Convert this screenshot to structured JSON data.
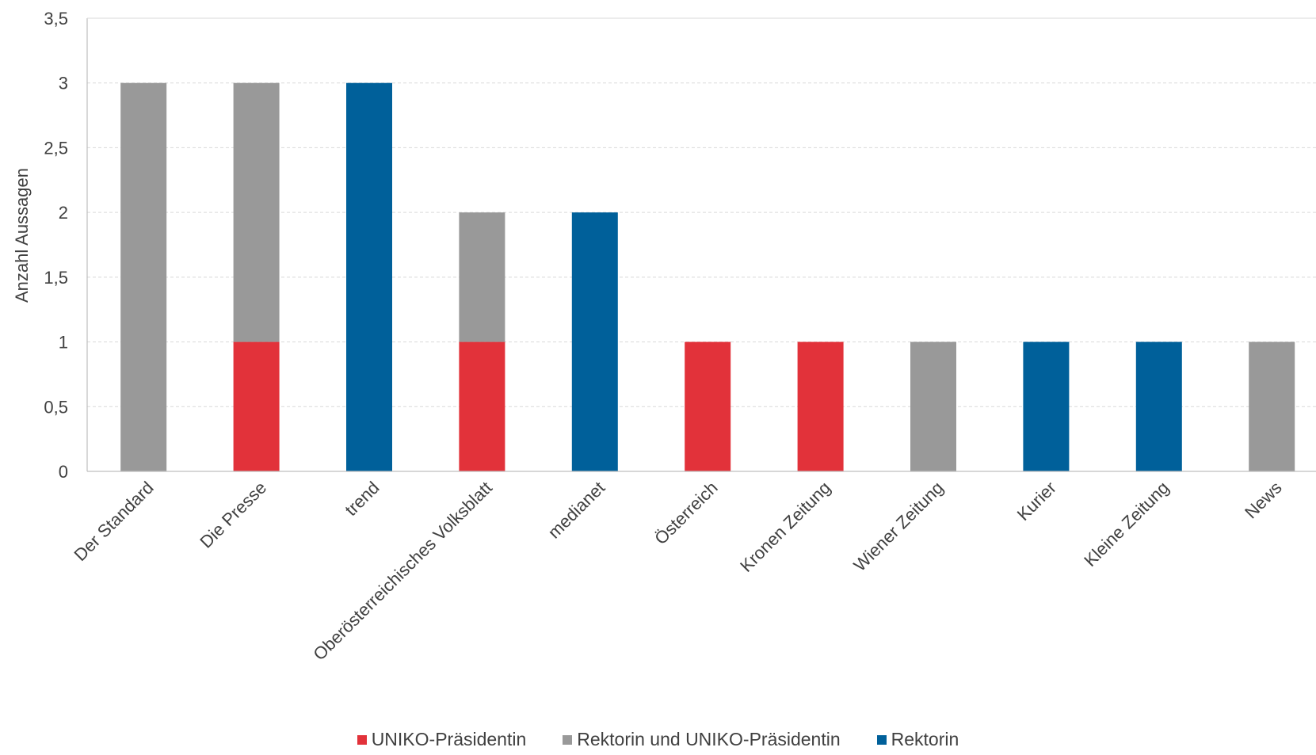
{
  "chart_data": {
    "type": "bar",
    "stacked": true,
    "categories": [
      "Der Standard",
      "Die Presse",
      "trend",
      "Oberösterreichisches Volksblatt",
      "medianet",
      "Österreich",
      "Kronen Zeitung",
      "Wiener Zeitung",
      "Kurier",
      "Kleine Zeitung",
      "News"
    ],
    "series": [
      {
        "name": "UNIKO-Präsidentin",
        "color": "#e2323a",
        "values": [
          0,
          1,
          0,
          1,
          0,
          1,
          1,
          0,
          0,
          0,
          0
        ]
      },
      {
        "name": "Rektorin und UNIKO-Präsidentin",
        "color": "#999999",
        "values": [
          3,
          2,
          0,
          1,
          0,
          0,
          0,
          1,
          0,
          0,
          1
        ]
      },
      {
        "name": "Rektorin",
        "color": "#00609a",
        "values": [
          0,
          0,
          3,
          0,
          2,
          0,
          0,
          0,
          1,
          1,
          0
        ]
      }
    ],
    "ylabel": "Anzahl Aussagen",
    "ylim": [
      0,
      3.5
    ],
    "yticks": [
      "0",
      "0,5",
      "1",
      "1,5",
      "2",
      "2,5",
      "3",
      "3,5"
    ],
    "grid": true,
    "legend_position": "bottom"
  }
}
